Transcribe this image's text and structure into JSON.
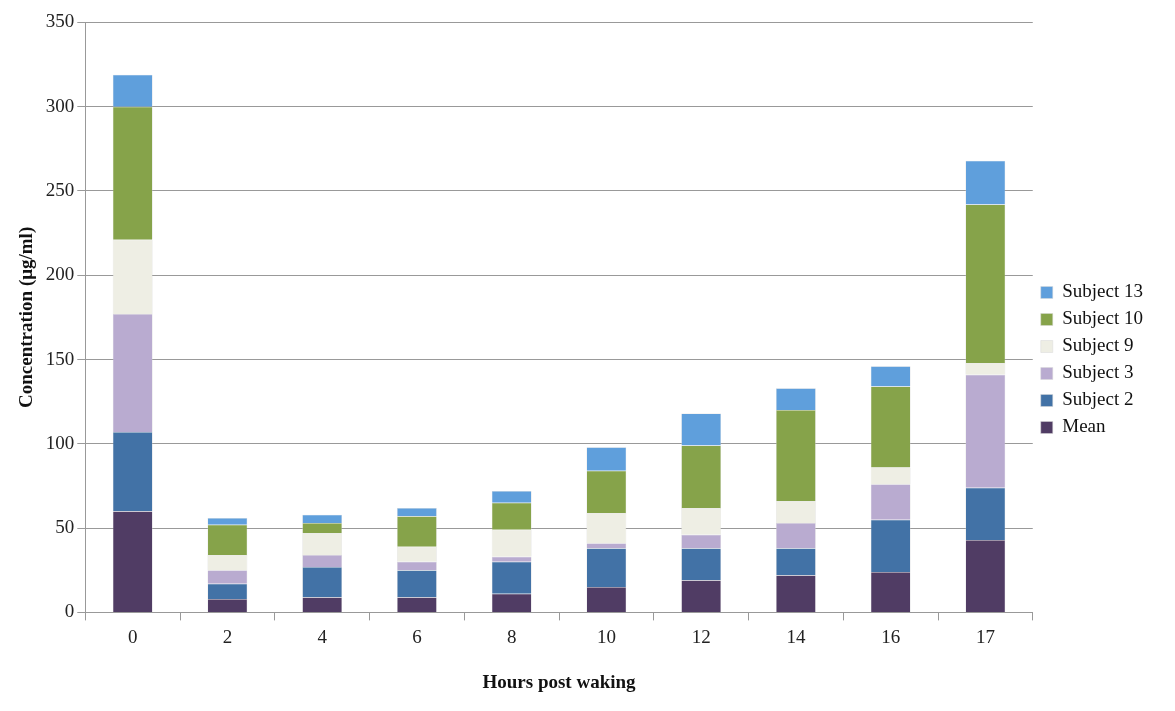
{
  "chart_data": {
    "type": "bar",
    "stacked": true,
    "xlabel": "Hours post waking",
    "ylabel": "Concentration (μg/ml)",
    "categories": [
      "0",
      "2",
      "4",
      "6",
      "8",
      "10",
      "12",
      "14",
      "16",
      "17"
    ],
    "series": [
      {
        "name": "Mean",
        "color": "#503c64",
        "values": [
          60,
          8,
          9,
          9,
          11,
          15,
          19,
          22,
          24,
          43
        ]
      },
      {
        "name": "Subject 2",
        "color": "#4272a6",
        "values": [
          47,
          9,
          18,
          16,
          19,
          23,
          19,
          16,
          31,
          31
        ]
      },
      {
        "name": "Subject 3",
        "color": "#b9abd0",
        "values": [
          70,
          8,
          7,
          5,
          3,
          3,
          8,
          15,
          21,
          67
        ]
      },
      {
        "name": "Subject 9",
        "color": "#eeeee4",
        "values": [
          44,
          9,
          13,
          9,
          16,
          18,
          16,
          13,
          10,
          7
        ]
      },
      {
        "name": "Subject 10",
        "color": "#86a34a",
        "values": [
          79,
          18,
          6,
          18,
          16,
          25,
          37,
          54,
          48,
          94
        ]
      },
      {
        "name": "Subject 13",
        "color": "#5f9fdc",
        "values": [
          19,
          4,
          5,
          5,
          7,
          14,
          19,
          13,
          12,
          26
        ]
      }
    ],
    "ylim": [
      0,
      350
    ],
    "yticks": [
      0,
      50,
      100,
      150,
      200,
      250,
      300,
      350
    ],
    "grid": "y",
    "legend": "right"
  }
}
